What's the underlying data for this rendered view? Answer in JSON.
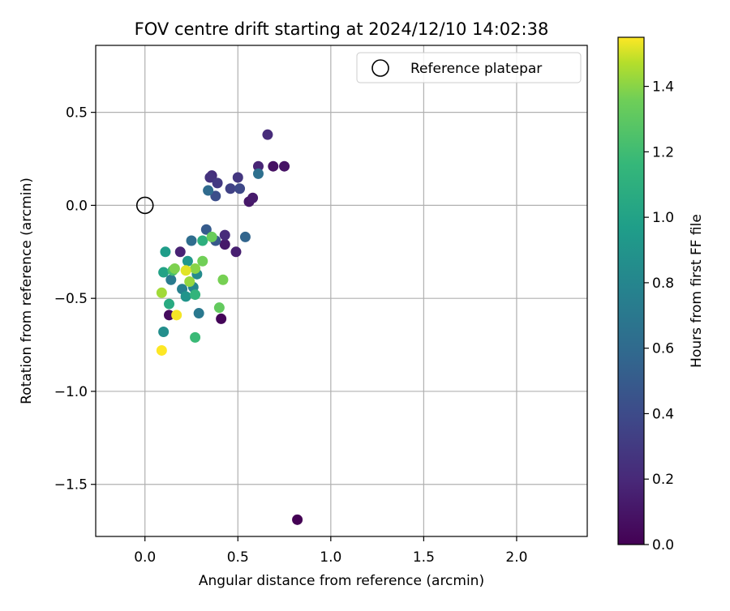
{
  "chart_data": {
    "type": "scatter",
    "title": "FOV centre drift starting at 2024/12/10 14:02:38",
    "xlabel": "Angular distance from reference (arcmin)",
    "ylabel": "Rotation from reference (arcmin)",
    "xlim": [
      -0.265,
      2.38
    ],
    "ylim": [
      -1.78,
      0.86
    ],
    "xticks": [
      0.0,
      0.5,
      1.0,
      1.5,
      2.0
    ],
    "xtick_labels": [
      "0.0",
      "0.5",
      "1.0",
      "1.5",
      "2.0"
    ],
    "yticks": [
      0.5,
      0.0,
      -0.5,
      -1.0,
      -1.5
    ],
    "ytick_labels": [
      "0.5",
      "0.0",
      "−0.5",
      "−1.0",
      "−1.5"
    ],
    "grid": true,
    "legend": {
      "placement": "upper-right",
      "entries": [
        {
          "label": "Reference platepar",
          "marker": "open-circle"
        }
      ]
    },
    "reference_point": {
      "x": 0.0,
      "y": 0.0
    },
    "colorbar": {
      "label": "Hours from first FF file",
      "colormap": "viridis",
      "range": [
        0.0,
        1.55
      ],
      "ticks": [
        0.0,
        0.2,
        0.4,
        0.6,
        0.8,
        1.0,
        1.2,
        1.4
      ],
      "tick_labels": [
        "0.0",
        "0.2",
        "0.4",
        "0.6",
        "0.8",
        "1.0",
        "1.2",
        "1.4"
      ]
    },
    "points": [
      {
        "x": 0.82,
        "y": -1.69,
        "c": 0.0
      },
      {
        "x": 0.41,
        "y": -0.61,
        "c": 0.02
      },
      {
        "x": 0.13,
        "y": -0.59,
        "c": 0.05
      },
      {
        "x": 0.69,
        "y": 0.21,
        "c": 0.08
      },
      {
        "x": 0.75,
        "y": 0.21,
        "c": 0.09
      },
      {
        "x": 0.56,
        "y": 0.02,
        "c": 0.11
      },
      {
        "x": 0.58,
        "y": 0.04,
        "c": 0.13
      },
      {
        "x": 0.43,
        "y": -0.21,
        "c": 0.12
      },
      {
        "x": 0.49,
        "y": -0.25,
        "c": 0.15
      },
      {
        "x": 0.19,
        "y": -0.25,
        "c": 0.17
      },
      {
        "x": 0.61,
        "y": 0.21,
        "c": 0.18
      },
      {
        "x": 0.66,
        "y": 0.38,
        "c": 0.22
      },
      {
        "x": 0.43,
        "y": -0.16,
        "c": 0.22
      },
      {
        "x": 0.36,
        "y": 0.16,
        "c": 0.23
      },
      {
        "x": 0.35,
        "y": 0.15,
        "c": 0.26
      },
      {
        "x": 0.5,
        "y": 0.15,
        "c": 0.28
      },
      {
        "x": 0.39,
        "y": 0.12,
        "c": 0.3
      },
      {
        "x": 0.46,
        "y": 0.09,
        "c": 0.34
      },
      {
        "x": 0.51,
        "y": 0.09,
        "c": 0.38
      },
      {
        "x": 0.38,
        "y": 0.05,
        "c": 0.42
      },
      {
        "x": 0.38,
        "y": -0.19,
        "c": 0.48
      },
      {
        "x": 0.33,
        "y": -0.13,
        "c": 0.5
      },
      {
        "x": 0.54,
        "y": -0.17,
        "c": 0.56
      },
      {
        "x": 0.34,
        "y": 0.08,
        "c": 0.6
      },
      {
        "x": 0.25,
        "y": -0.19,
        "c": 0.62
      },
      {
        "x": 0.61,
        "y": 0.17,
        "c": 0.64
      },
      {
        "x": 0.29,
        "y": -0.58,
        "c": 0.7
      },
      {
        "x": 0.14,
        "y": -0.4,
        "c": 0.72
      },
      {
        "x": 0.2,
        "y": -0.45,
        "c": 0.76
      },
      {
        "x": 0.26,
        "y": -0.44,
        "c": 0.8
      },
      {
        "x": 0.28,
        "y": -0.37,
        "c": 0.84
      },
      {
        "x": 0.1,
        "y": -0.68,
        "c": 0.86
      },
      {
        "x": 0.22,
        "y": -0.49,
        "c": 0.9
      },
      {
        "x": 0.23,
        "y": -0.3,
        "c": 0.92
      },
      {
        "x": 0.11,
        "y": -0.25,
        "c": 0.96
      },
      {
        "x": 0.1,
        "y": -0.36,
        "c": 1.0
      },
      {
        "x": 0.13,
        "y": -0.53,
        "c": 1.06
      },
      {
        "x": 0.31,
        "y": -0.19,
        "c": 1.1
      },
      {
        "x": 0.27,
        "y": -0.48,
        "c": 1.14
      },
      {
        "x": 0.27,
        "y": -0.71,
        "c": 1.18
      },
      {
        "x": 0.15,
        "y": -0.35,
        "c": 1.22
      },
      {
        "x": 0.4,
        "y": -0.55,
        "c": 1.32
      },
      {
        "x": 0.36,
        "y": -0.17,
        "c": 1.34
      },
      {
        "x": 0.31,
        "y": -0.3,
        "c": 1.36
      },
      {
        "x": 0.42,
        "y": -0.4,
        "c": 1.37
      },
      {
        "x": 0.16,
        "y": -0.34,
        "c": 1.38
      },
      {
        "x": 0.27,
        "y": -0.34,
        "c": 1.4
      },
      {
        "x": 0.24,
        "y": -0.41,
        "c": 1.42
      },
      {
        "x": 0.09,
        "y": -0.47,
        "c": 1.44
      },
      {
        "x": 0.22,
        "y": -0.35,
        "c": 1.52
      },
      {
        "x": 0.17,
        "y": -0.59,
        "c": 1.54
      },
      {
        "x": 0.09,
        "y": -0.78,
        "c": 1.55
      }
    ]
  }
}
